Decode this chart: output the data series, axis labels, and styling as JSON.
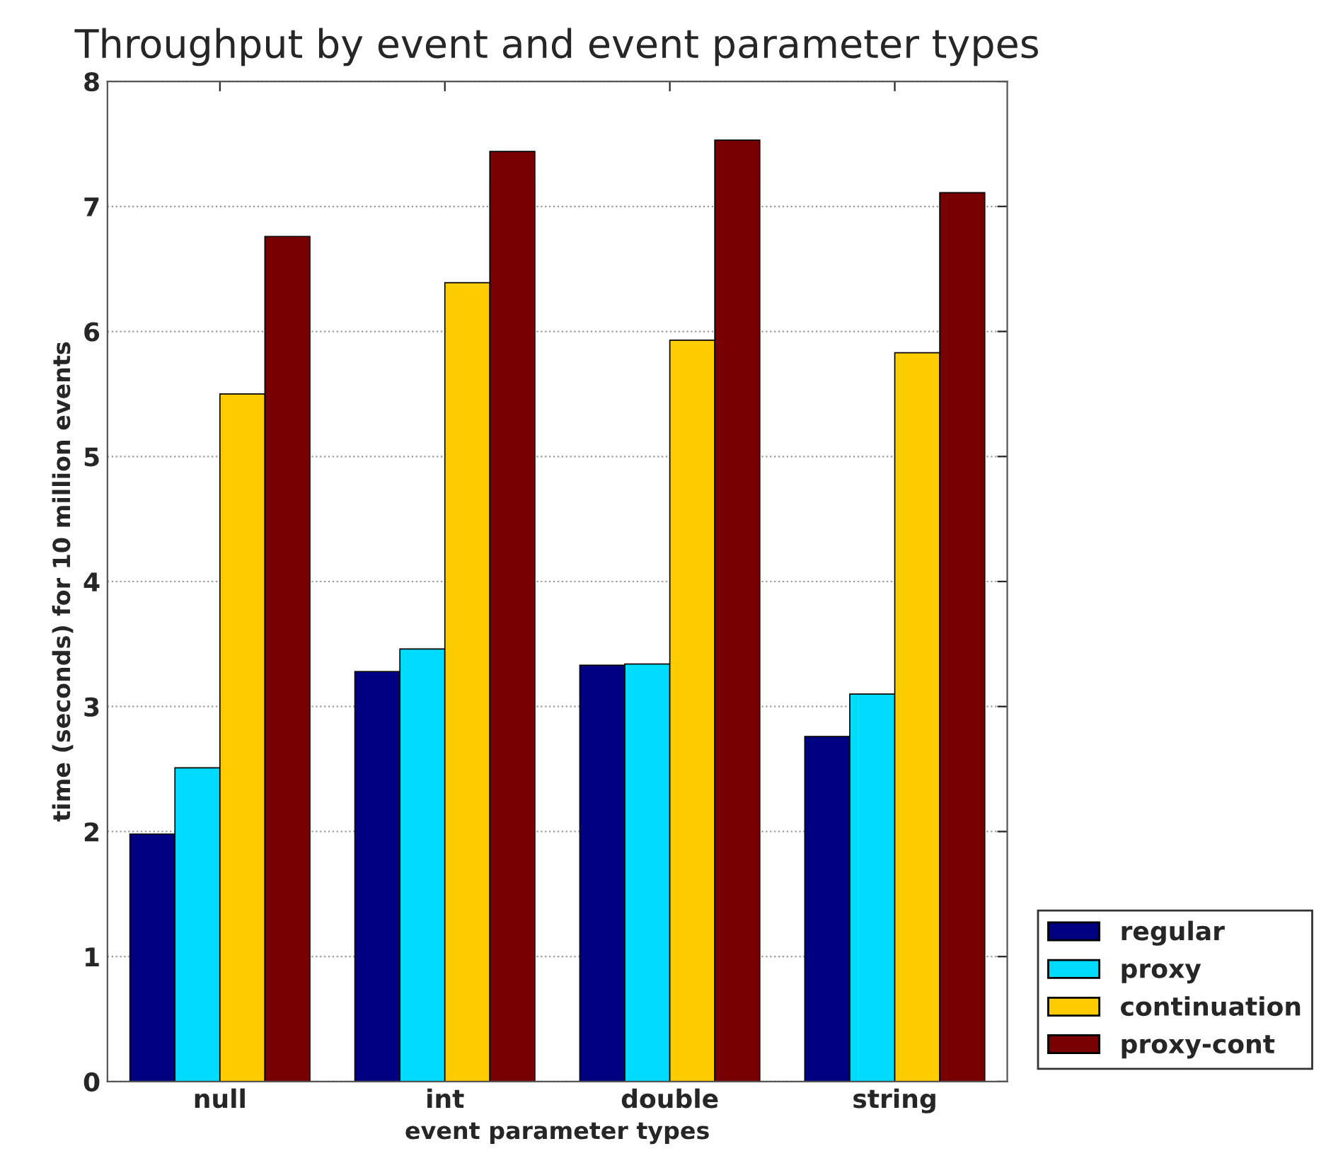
{
  "chart_data": {
    "type": "bar",
    "title": "Throughput by event and event parameter types",
    "xlabel": "event parameter types",
    "ylabel": "time (seconds) for 10 million events",
    "categories": [
      "null",
      "int",
      "double",
      "string"
    ],
    "series": [
      {
        "name": "regular",
        "color": "#000080",
        "values": [
          1.98,
          3.28,
          3.33,
          2.76
        ]
      },
      {
        "name": "proxy",
        "color": "#00dcff",
        "values": [
          2.51,
          3.46,
          3.34,
          3.1
        ]
      },
      {
        "name": "continuation",
        "color": "#ffcc00",
        "values": [
          5.5,
          6.39,
          5.93,
          5.83
        ]
      },
      {
        "name": "proxy-cont",
        "color": "#780000",
        "values": [
          6.76,
          7.44,
          7.53,
          7.11
        ]
      }
    ],
    "ylim": [
      0,
      8
    ],
    "yticks": [
      0,
      1,
      2,
      3,
      4,
      5,
      6,
      7,
      8
    ],
    "grid": "y",
    "legend": "bottom right"
  }
}
